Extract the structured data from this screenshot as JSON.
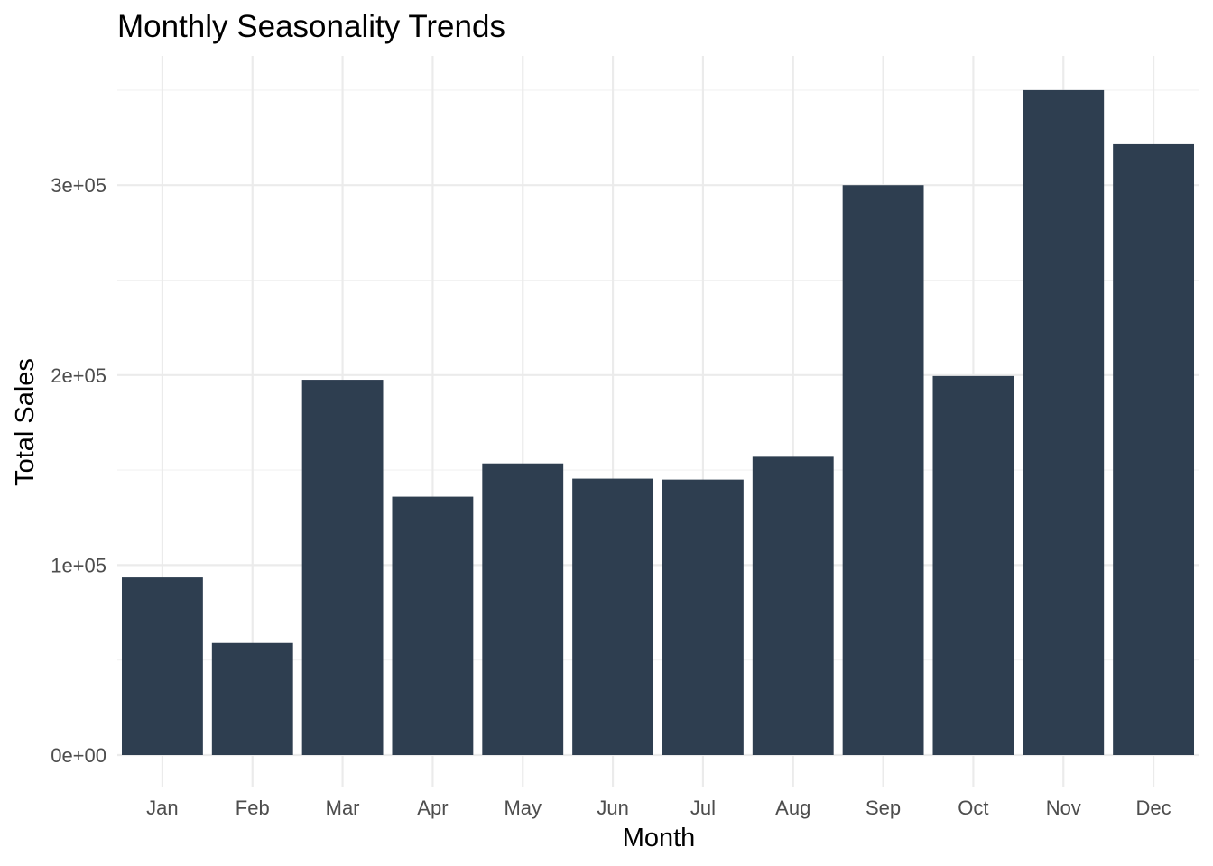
{
  "chart_data": {
    "type": "bar",
    "title": "Monthly Seasonality Trends",
    "xlabel": "Month",
    "ylabel": "Total Sales",
    "categories": [
      "Jan",
      "Feb",
      "Mar",
      "Apr",
      "May",
      "Jun",
      "Jul",
      "Aug",
      "Sep",
      "Oct",
      "Nov",
      "Dec"
    ],
    "values": [
      93500,
      59000,
      197500,
      136000,
      153500,
      145500,
      145000,
      157000,
      300000,
      199500,
      350000,
      321500
    ],
    "ylim": [
      0,
      368000
    ],
    "yticks": [
      0,
      100000,
      200000,
      300000
    ],
    "ytick_labels": [
      "0e+00",
      "1e+05",
      "2e+05",
      "3e+05"
    ],
    "grid": true,
    "legend": "none",
    "bar_color": "#2e3e50"
  }
}
